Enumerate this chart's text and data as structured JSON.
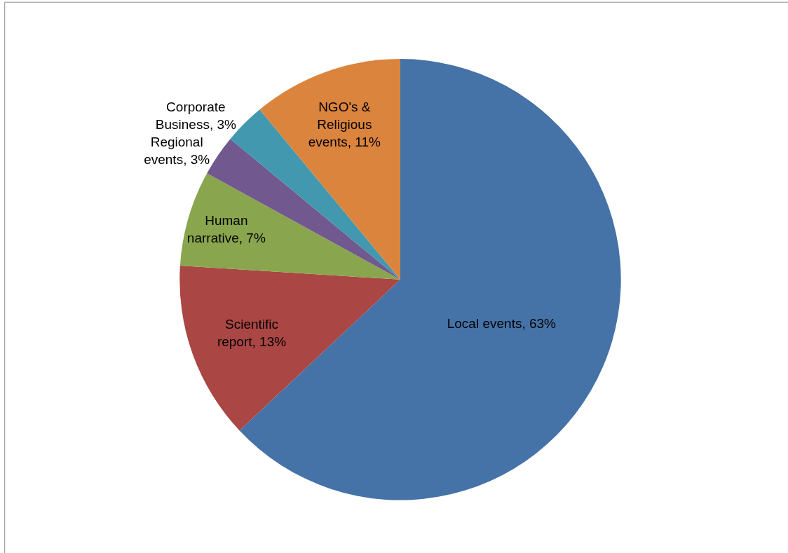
{
  "chart_data": {
    "type": "pie",
    "categories": [
      "Local events",
      "Scientific report",
      "Human narrative",
      "Regional events",
      "Corporate Business",
      "NGO's & Religious events"
    ],
    "values": [
      63,
      13,
      7,
      3,
      3,
      11
    ],
    "colors": [
      "#4572a7",
      "#aa4643",
      "#89a54e",
      "#71588f",
      "#4198af",
      "#db843d"
    ],
    "value_labels": [
      "63%",
      "13%",
      "7%",
      "3%",
      "3%",
      "11%"
    ],
    "legend": false
  }
}
